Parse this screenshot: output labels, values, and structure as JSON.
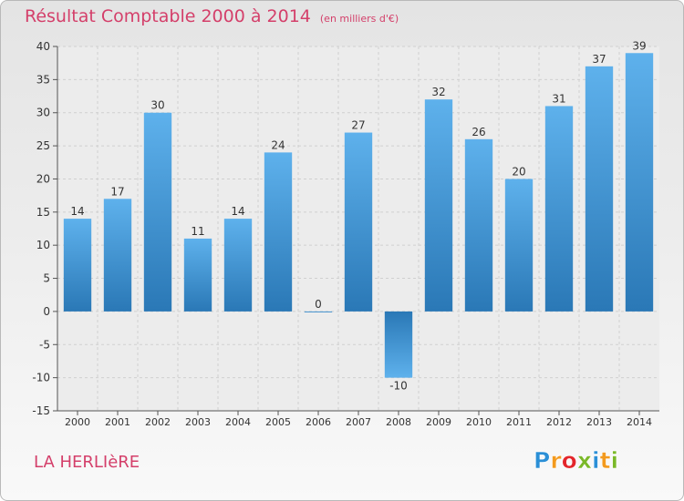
{
  "title": "Résultat Comptable 2000 à 2014",
  "unit_note": "(en milliers d'€)",
  "town": "LA HERLIèRE",
  "brand": "Proxiti",
  "brand_letters": [
    {
      "ch": "P",
      "color": "#2b8fd6"
    },
    {
      "ch": "r",
      "color": "#f39a1e"
    },
    {
      "ch": "o",
      "color": "#e3262b"
    },
    {
      "ch": "x",
      "color": "#7ab828"
    },
    {
      "ch": "i",
      "color": "#2b8fd6"
    },
    {
      "ch": "t",
      "color": "#f39a1e"
    },
    {
      "ch": "i",
      "color": "#7ab828"
    }
  ],
  "colors": {
    "title": "#d43f6a",
    "bar_top": "#5eb1ec",
    "bar_bottom": "#2a78b6"
  },
  "chart_data": {
    "type": "bar",
    "title": "Résultat Comptable 2000 à 2014",
    "subtitle": "(en milliers d'€)",
    "xlabel": "",
    "ylabel": "",
    "categories": [
      "2000",
      "2001",
      "2002",
      "2003",
      "2004",
      "2005",
      "2006",
      "2007",
      "2008",
      "2009",
      "2010",
      "2011",
      "2012",
      "2013",
      "2014"
    ],
    "values": [
      14,
      17,
      30,
      11,
      14,
      24,
      0,
      27,
      -10,
      32,
      26,
      20,
      31,
      37,
      39
    ],
    "data_labels": [
      "14",
      "17",
      "30",
      "11",
      "14",
      "24",
      "0",
      "27",
      "-10",
      "32",
      "26",
      "20",
      "31",
      "37",
      "39"
    ],
    "ylim": [
      -15,
      40
    ],
    "yticks": [
      -15,
      -10,
      -5,
      0,
      5,
      10,
      15,
      20,
      25,
      30,
      35,
      40
    ],
    "grid": true,
    "legend": "none"
  }
}
